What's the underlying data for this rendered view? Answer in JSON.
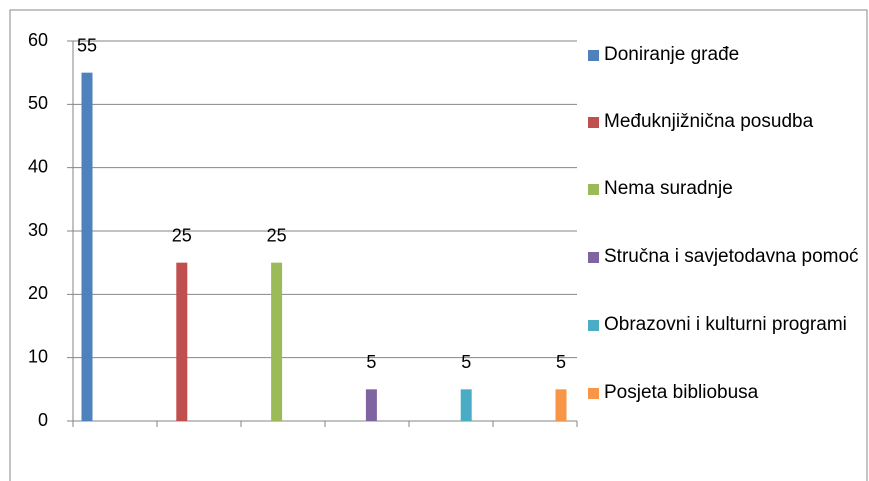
{
  "chart_data": {
    "type": "bar",
    "series": [
      {
        "name": "Doniranje građe",
        "color": "#4F81BD",
        "values": [
          55
        ]
      },
      {
        "name": "Međuknjižnična posudba",
        "color": "#C0504D",
        "values": [
          25
        ]
      },
      {
        "name": "Nema suradnje",
        "color": "#9BBB59",
        "values": [
          25
        ]
      },
      {
        "name": "Stručna i savjetodavna pomoć",
        "color": "#8064A2",
        "values": [
          5
        ]
      },
      {
        "name": "Obrazovni i kulturni programi",
        "color": "#4BACC6",
        "values": [
          5
        ]
      },
      {
        "name": "Posjeta bibliobusa",
        "color": "#F79646",
        "values": [
          5
        ]
      }
    ],
    "ylim": [
      0,
      60
    ],
    "yticks": [
      0,
      10,
      20,
      30,
      40,
      50,
      60
    ],
    "grid": true,
    "legend": "right"
  }
}
